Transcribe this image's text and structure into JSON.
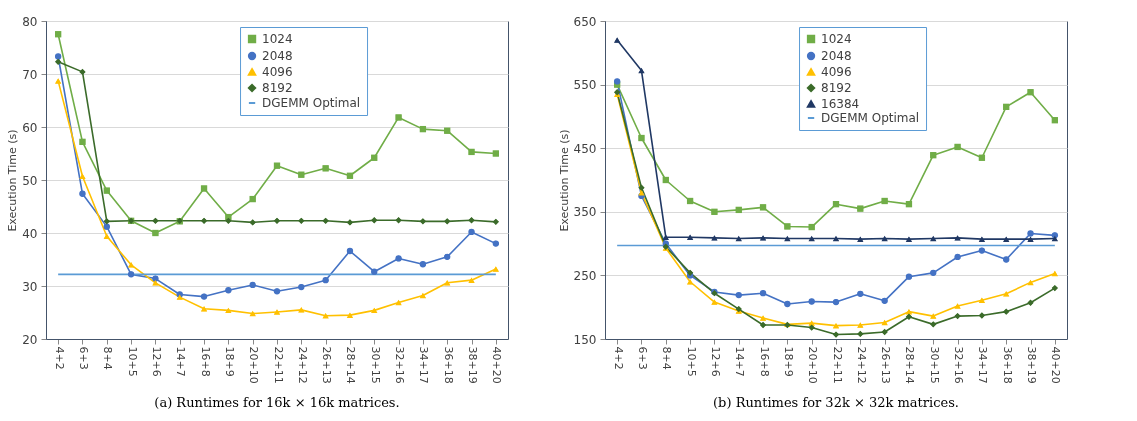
{
  "chart_data": [
    {
      "type": "line",
      "title": "(a) Runtimes for 16k × 16k matrices.",
      "ylabel": "Execution Time (s)",
      "categories": [
        "4+2",
        "6+3",
        "8+4",
        "10+5",
        "12+6",
        "14+7",
        "16+8",
        "18+9",
        "20+10",
        "22+11",
        "24+12",
        "26+13",
        "28+14",
        "30+15",
        "32+16",
        "34+17",
        "36+18",
        "38+19",
        "40+20"
      ],
      "ylim": [
        20,
        80
      ],
      "yticks": [
        20,
        30,
        40,
        50,
        60,
        70,
        80
      ],
      "grid": "y",
      "legend": "top right",
      "series": [
        {
          "name": "1024",
          "color": "#70ad47",
          "marker": "square",
          "values": [
            77.5,
            57.2,
            48,
            42.3,
            40,
            42.2,
            48.4,
            43,
            46.4,
            52.7,
            51,
            52.2,
            50.8,
            54.2,
            61.8,
            59.6,
            59.3,
            55.3,
            55
          ]
        },
        {
          "name": "2048",
          "color": "#4472c4",
          "marker": "circle",
          "values": [
            73.3,
            47.4,
            41.2,
            32.2,
            31.4,
            28.4,
            28,
            29.2,
            30.2,
            29,
            29.8,
            31.1,
            36.6,
            32.7,
            35.2,
            34.1,
            35.5,
            40.2,
            38
          ]
        },
        {
          "name": "4096",
          "color": "#ffc000",
          "marker": "triangle",
          "values": [
            68.7,
            50.7,
            39.4,
            34,
            30.6,
            27.9,
            25.7,
            25.4,
            24.8,
            25.1,
            25.5,
            24.4,
            24.5,
            25.4,
            26.9,
            28.2,
            30.6,
            31.1,
            33.2
          ]
        },
        {
          "name": "8192",
          "color": "#3b6b2a",
          "marker": "diamond",
          "values": [
            72.3,
            70.4,
            42.2,
            42.3,
            42.3,
            42.3,
            42.3,
            42.3,
            42,
            42.3,
            42.3,
            42.3,
            42,
            42.4,
            42.4,
            42.2,
            42.2,
            42.4,
            42.1
          ]
        },
        {
          "name": "DGEMM Optimal",
          "color": "#5b9bd5",
          "marker": "none",
          "values": [
            32.2,
            32.2,
            32.2,
            32.2,
            32.2,
            32.2,
            32.2,
            32.2,
            32.2,
            32.2,
            32.2,
            32.2,
            32.2,
            32.2,
            32.2,
            32.2,
            32.2,
            32.2,
            32.2
          ]
        }
      ]
    },
    {
      "type": "line",
      "title": "(b) Runtimes for 32k × 32k matrices.",
      "ylabel": "Execution Time (s)",
      "categories": [
        "4+2",
        "6+3",
        "8+4",
        "10+5",
        "12+6",
        "14+7",
        "16+8",
        "18+9",
        "20+10",
        "22+11",
        "24+12",
        "26+13",
        "28+14",
        "30+15",
        "32+16",
        "34+17",
        "36+18",
        "38+19",
        "40+20"
      ],
      "ylim": [
        150,
        650
      ],
      "yticks": [
        150,
        250,
        350,
        450,
        550,
        650
      ],
      "grid": "y",
      "legend": "top right",
      "series": [
        {
          "name": "1024",
          "color": "#70ad47",
          "marker": "square",
          "values": [
            550,
            466,
            400,
            367,
            350,
            353,
            357,
            327,
            326,
            362,
            355,
            367,
            362,
            439,
            452,
            435,
            515,
            538,
            494
          ]
        },
        {
          "name": "2048",
          "color": "#4472c4",
          "marker": "circle",
          "values": [
            555,
            375,
            300,
            250,
            224,
            219,
            222,
            205,
            209,
            208,
            221,
            210,
            248,
            254,
            279,
            289,
            275,
            316,
            313
          ]
        },
        {
          "name": "4096",
          "color": "#ffc000",
          "marker": "triangle",
          "values": [
            535,
            380,
            293,
            240,
            208,
            194,
            183,
            173,
            175,
            171,
            172,
            176,
            193,
            186,
            202,
            211,
            221,
            239,
            253
          ]
        },
        {
          "name": "8192",
          "color": "#3b6b2a",
          "marker": "diamond",
          "values": [
            538,
            388,
            295,
            254,
            222,
            197,
            172,
            172,
            168,
            157,
            158,
            161,
            185,
            173,
            186,
            187,
            193,
            207,
            230
          ]
        },
        {
          "name": "16384",
          "color": "#203864",
          "marker": "triangle",
          "values": [
            620,
            572,
            310,
            310,
            309,
            308,
            309,
            308,
            308,
            308,
            307,
            308,
            307,
            308,
            309,
            307,
            307,
            307,
            308
          ]
        },
        {
          "name": "DGEMM Optimal",
          "color": "#5b9bd5",
          "marker": "none",
          "values": [
            297,
            297,
            297,
            297,
            297,
            297,
            297,
            297,
            297,
            297,
            297,
            297,
            297,
            297,
            297,
            297,
            297,
            297,
            297
          ]
        }
      ]
    }
  ]
}
